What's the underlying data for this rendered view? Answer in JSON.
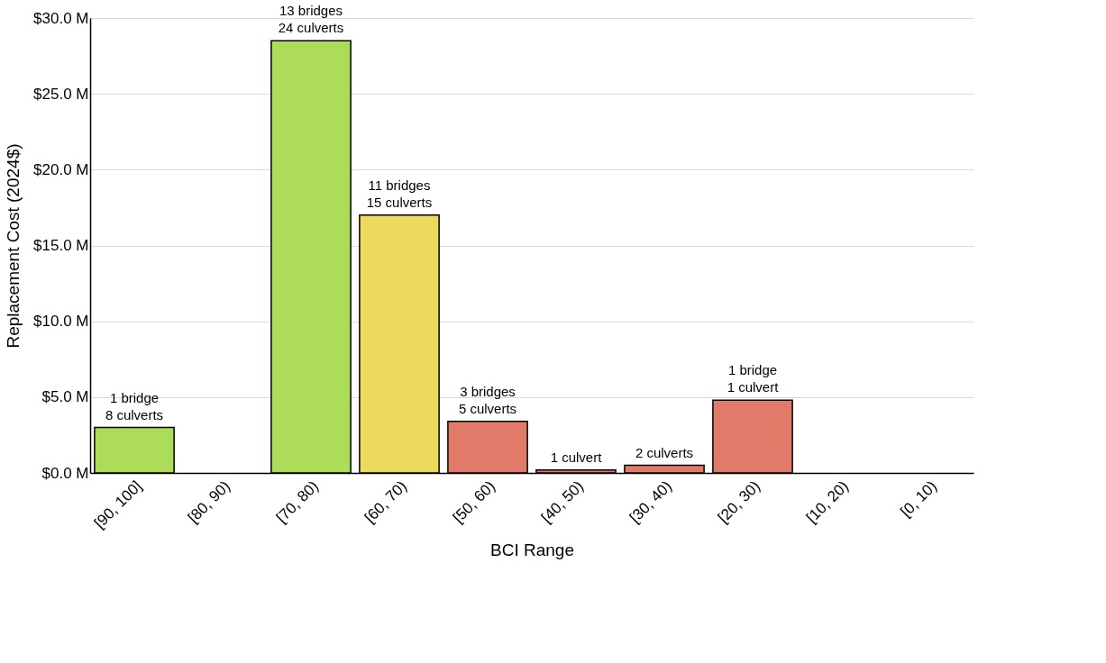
{
  "chart_data": {
    "type": "bar",
    "categories": [
      "[90, 100]",
      "[80, 90)",
      "[70, 80)",
      "[60, 70)",
      "[50, 60)",
      "[40, 50)",
      "[30, 40)",
      "[20, 30)",
      "[10, 20)",
      "[0, 10)"
    ],
    "values": [
      3.0,
      null,
      28.5,
      17.0,
      3.4,
      0.2,
      0.5,
      4.8,
      null,
      null
    ],
    "colors": [
      "#acdc5a",
      "#acdc5a",
      "#acdc5a",
      "#ecd95e",
      "#e07b6a",
      "#e07b6a",
      "#e07b6a",
      "#e07b6a",
      "#e07b6a",
      "#e07b6a"
    ],
    "annotations": [
      {
        "text": "1 bridge\n8 culverts",
        "x": "[90, 100]",
        "y": 3.0
      },
      {
        "text": "13 bridges\n24 culverts",
        "x": "[70, 80)",
        "y": 28.5
      },
      {
        "text": "11 bridges\n15 culverts",
        "x": "[60, 70)",
        "y": 17.0
      },
      {
        "text": "3 bridges\n5 culverts",
        "x": "[50, 60)",
        "y": 3.4
      },
      {
        "text": "1 culvert",
        "x": "[40, 50)",
        "y": 0.2
      },
      {
        "text": "2 culverts",
        "x": "[30, 40)",
        "y": 0.5
      },
      {
        "text": "1 bridge\n1 culvert",
        "x": "[20, 30)",
        "y": 4.8
      }
    ],
    "xlabel": "BCI Range",
    "ylabel": "Replacement Cost (2024$)",
    "ylim": [
      0,
      30
    ],
    "yticks": [
      {
        "value": 0,
        "label": "$0.0 M"
      },
      {
        "value": 5,
        "label": "$5.0 M"
      },
      {
        "value": 10,
        "label": "$10.0 M"
      },
      {
        "value": 15,
        "label": "$15.0 M"
      },
      {
        "value": 20,
        "label": "$20.0 M"
      },
      {
        "value": 25,
        "label": "$25.0 M"
      },
      {
        "value": 30,
        "label": "$30.0 M"
      }
    ],
    "grid": "y"
  }
}
